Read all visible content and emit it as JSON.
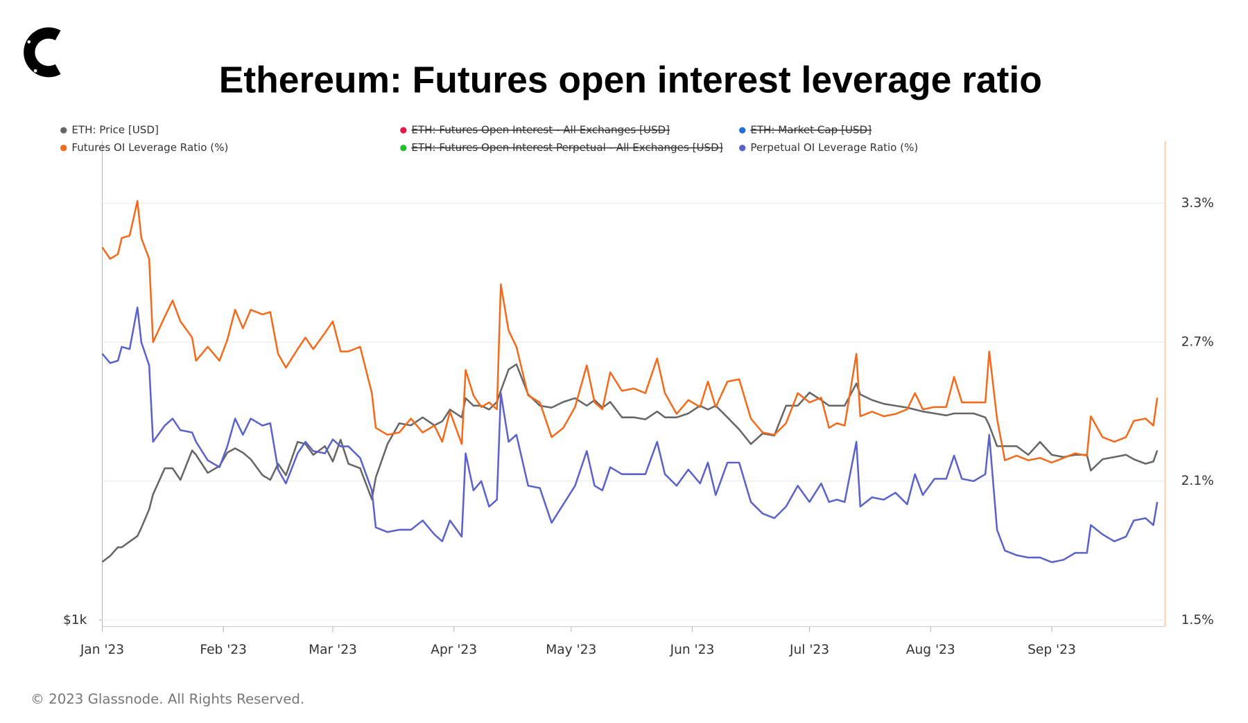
{
  "chart_data": {
    "type": "line",
    "title": "Ethereum: Futures open interest leverage ratio",
    "footer": "© 2023 Glassnode. All Rights Reserved.",
    "x": [
      0,
      2,
      4,
      5,
      7,
      9,
      10,
      12,
      13,
      16,
      18,
      20,
      23,
      24,
      27,
      30,
      32,
      34,
      36,
      38,
      41,
      43,
      45,
      47,
      50,
      52,
      54,
      57,
      59,
      61,
      63,
      66,
      69,
      70,
      73,
      76,
      79,
      82,
      85,
      87,
      89,
      92,
      93,
      95,
      97,
      99,
      101,
      102,
      104,
      106,
      109,
      112,
      115,
      118,
      121,
      124,
      126,
      128,
      130,
      133,
      136,
      139,
      142,
      144,
      147,
      150,
      153,
      155,
      157,
      160,
      163,
      166,
      169,
      172,
      175,
      178,
      181,
      184,
      186,
      188,
      190,
      193,
      194,
      197,
      200,
      203,
      206,
      208,
      210,
      213,
      216,
      218,
      220,
      223,
      226,
      227,
      229,
      231,
      234,
      237,
      240,
      243,
      246,
      249,
      252,
      253,
      256,
      259,
      262,
      264,
      267,
      269,
      270
    ],
    "xlim": [
      0,
      272
    ],
    "xticks": [
      {
        "value": 0,
        "label": "Jan '23"
      },
      {
        "value": 31,
        "label": "Feb '23"
      },
      {
        "value": 59,
        "label": "Mar '23"
      },
      {
        "value": 90,
        "label": "Apr '23"
      },
      {
        "value": 120,
        "label": "May '23"
      },
      {
        "value": 151,
        "label": "Jun '23"
      },
      {
        "value": 181,
        "label": "Jul '23"
      },
      {
        "value": 212,
        "label": "Aug '23"
      },
      {
        "value": 243,
        "label": "Sep '23"
      }
    ],
    "ylim": [
      1000,
      3910
    ],
    "y_log": true,
    "yticks": [
      {
        "value": 1000,
        "label": "$1k"
      }
    ],
    "y2lim": [
      1.5,
      3.57
    ],
    "y2ticks": [
      {
        "value": 1.5,
        "label": "1.5%"
      },
      {
        "value": 2.1,
        "label": "2.1%"
      },
      {
        "value": 2.7,
        "label": "2.7%"
      },
      {
        "value": 3.3,
        "label": "3.3%"
      }
    ],
    "grid": true,
    "series": [
      {
        "name": "ETH: Price [USD]",
        "color": "#666666",
        "visible": true,
        "values": [
          1180,
          1200,
          1230,
          1230,
          1250,
          1270,
          1300,
          1370,
          1430,
          1540,
          1540,
          1490,
          1620,
          1600,
          1520,
          1550,
          1610,
          1630,
          1610,
          1580,
          1510,
          1490,
          1560,
          1510,
          1660,
          1650,
          1600,
          1640,
          1570,
          1670,
          1560,
          1540,
          1410,
          1500,
          1650,
          1750,
          1740,
          1780,
          1740,
          1760,
          1820,
          1780,
          1880,
          1840,
          1840,
          1820,
          1860,
          1920,
          2040,
          2070,
          1900,
          1840,
          1830,
          1860,
          1880,
          1840,
          1870,
          1830,
          1860,
          1780,
          1780,
          1770,
          1810,
          1780,
          1780,
          1800,
          1840,
          1820,
          1840,
          1780,
          1720,
          1650,
          1700,
          1690,
          1840,
          1840,
          1910,
          1870,
          1840,
          1840,
          1840,
          1960,
          1900,
          1870,
          1850,
          1840,
          1830,
          1820,
          1810,
          1800,
          1790,
          1800,
          1800,
          1800,
          1780,
          1740,
          1640,
          1640,
          1640,
          1600,
          1660,
          1600,
          1590,
          1600,
          1600,
          1530,
          1580,
          1590,
          1600,
          1580,
          1560,
          1570,
          1620
        ]
      },
      {
        "name": "ETH: Futures Open Interest - All Exchanges [USD]",
        "color": "#e4194b",
        "visible": false
      },
      {
        "name": "ETH: Market Cap [USD]",
        "color": "#1f6fe0",
        "visible": false
      },
      {
        "name": "Futures OI Leverage Ratio (%)",
        "color": "#f26b1d",
        "visible": true,
        "axis": "y2",
        "values": [
          3.11,
          3.06,
          3.08,
          3.15,
          3.16,
          3.31,
          3.15,
          3.06,
          2.7,
          2.81,
          2.88,
          2.79,
          2.72,
          2.62,
          2.68,
          2.62,
          2.71,
          2.84,
          2.76,
          2.84,
          2.82,
          2.83,
          2.65,
          2.59,
          2.67,
          2.72,
          2.67,
          2.74,
          2.79,
          2.66,
          2.66,
          2.68,
          2.48,
          2.33,
          2.3,
          2.31,
          2.37,
          2.31,
          2.34,
          2.27,
          2.4,
          2.26,
          2.58,
          2.47,
          2.42,
          2.44,
          2.41,
          2.95,
          2.75,
          2.68,
          2.47,
          2.44,
          2.29,
          2.33,
          2.42,
          2.6,
          2.44,
          2.41,
          2.57,
          2.49,
          2.5,
          2.48,
          2.63,
          2.48,
          2.39,
          2.45,
          2.42,
          2.53,
          2.42,
          2.53,
          2.54,
          2.37,
          2.31,
          2.3,
          2.35,
          2.48,
          2.44,
          2.46,
          2.33,
          2.35,
          2.34,
          2.65,
          2.38,
          2.4,
          2.38,
          2.39,
          2.41,
          2.48,
          2.41,
          2.42,
          2.42,
          2.55,
          2.44,
          2.44,
          2.44,
          2.66,
          2.37,
          2.19,
          2.21,
          2.19,
          2.2,
          2.18,
          2.2,
          2.22,
          2.21,
          2.38,
          2.29,
          2.27,
          2.29,
          2.36,
          2.37,
          2.34,
          2.46
        ]
      },
      {
        "name": "ETH: Futures Open Interest Perpetual - All Exchanges [USD]",
        "color": "#22c02a",
        "visible": false
      },
      {
        "name": "Perpetual OI Leverage Ratio (%)",
        "color": "#5b63c8",
        "visible": true,
        "axis": "y2",
        "values": [
          2.65,
          2.61,
          2.62,
          2.68,
          2.67,
          2.85,
          2.7,
          2.6,
          2.27,
          2.34,
          2.37,
          2.32,
          2.31,
          2.27,
          2.19,
          2.16,
          2.25,
          2.37,
          2.3,
          2.37,
          2.34,
          2.35,
          2.15,
          2.09,
          2.22,
          2.27,
          2.23,
          2.22,
          2.28,
          2.25,
          2.25,
          2.2,
          2.06,
          1.9,
          1.88,
          1.89,
          1.89,
          1.93,
          1.87,
          1.84,
          1.93,
          1.86,
          2.22,
          2.06,
          2.1,
          1.99,
          2.02,
          2.48,
          2.27,
          2.3,
          2.08,
          2.07,
          1.92,
          2.0,
          2.08,
          2.23,
          2.08,
          2.06,
          2.16,
          2.13,
          2.13,
          2.13,
          2.27,
          2.13,
          2.08,
          2.15,
          2.09,
          2.18,
          2.04,
          2.18,
          2.18,
          2.01,
          1.96,
          1.94,
          1.99,
          2.08,
          2.01,
          2.09,
          2.01,
          2.02,
          2.01,
          2.27,
          1.99,
          2.03,
          2.02,
          2.05,
          2.0,
          2.13,
          2.04,
          2.11,
          2.11,
          2.21,
          2.11,
          2.1,
          2.13,
          2.3,
          1.89,
          1.8,
          1.78,
          1.77,
          1.77,
          1.75,
          1.76,
          1.79,
          1.79,
          1.91,
          1.87,
          1.84,
          1.86,
          1.93,
          1.94,
          1.91,
          2.01
        ]
      }
    ]
  }
}
